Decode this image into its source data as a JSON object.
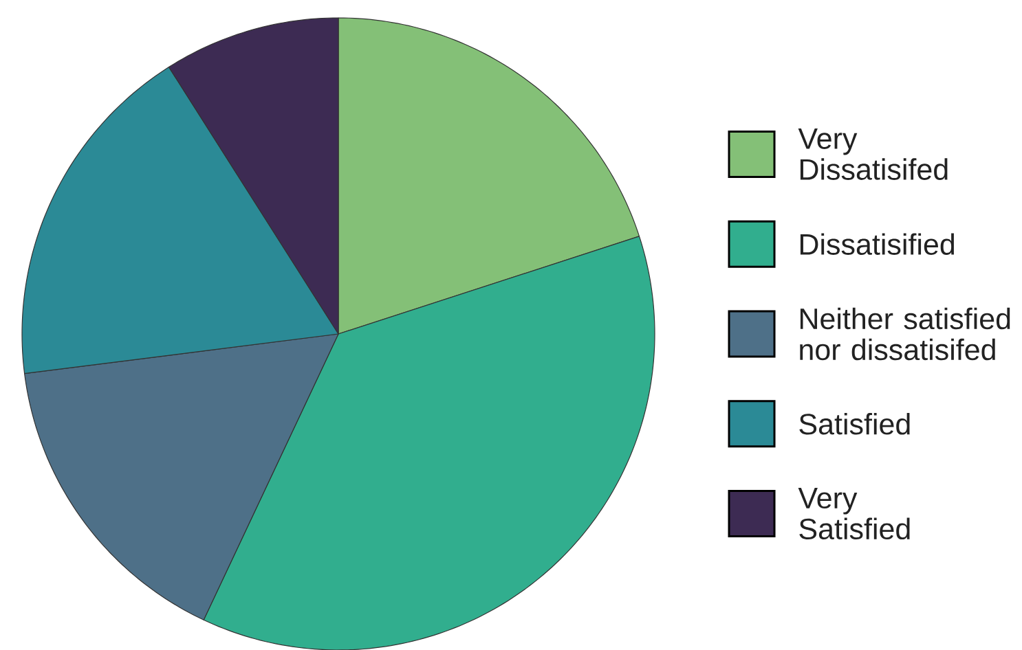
{
  "chart_data": {
    "type": "pie",
    "categories": [
      "Very\nDissatisifed",
      "Dissatisified",
      "Neither satisfied\nnor dissatisifed",
      "Satisfied",
      "Very\nSatisfied"
    ],
    "values": [
      20,
      37,
      16,
      18,
      9
    ],
    "colors": [
      "#84c077",
      "#31ae8e",
      "#4e7088",
      "#2b8a96",
      "#3d2b53"
    ],
    "legend": "right"
  }
}
